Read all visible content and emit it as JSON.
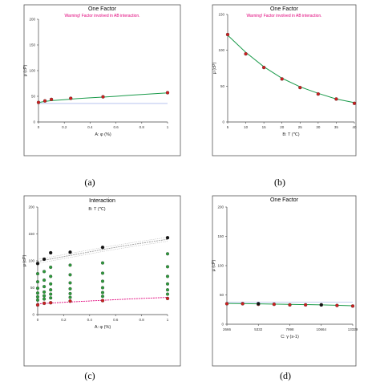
{
  "chart_data": [
    {
      "type": "line",
      "caption": "(a)",
      "title": "One Factor",
      "warning": "Warning! Factor involved in AB interaction.",
      "xlabel": "A: φ (%)",
      "ylabel": "μ (cP)",
      "xlim": [
        0,
        1
      ],
      "ylim": [
        0,
        200
      ],
      "xticks": [
        "0",
        "0.2",
        "0.4",
        "0.6",
        "0.8",
        "1"
      ],
      "yticks": [
        "0",
        "50",
        "100",
        "150",
        "200"
      ],
      "reference_line": 36,
      "series": [
        {
          "kind": "fit",
          "color": "#1a9a4a",
          "x": [
            0,
            0.05,
            0.1,
            0.2,
            0.3,
            0.4,
            0.5,
            0.6,
            0.7,
            0.8,
            0.9,
            1.0
          ],
          "y": [
            38,
            40,
            41.5,
            43.5,
            45.5,
            47,
            48.5,
            50,
            52,
            53.5,
            55,
            56.5
          ]
        },
        {
          "kind": "points",
          "color": "#cc1f1f",
          "x": [
            0,
            0.05,
            0.1,
            0.25,
            0.5,
            1.0
          ],
          "y": [
            38,
            41,
            44,
            46,
            49,
            57
          ]
        }
      ]
    },
    {
      "type": "line",
      "caption": "(b)",
      "title": "One Factor",
      "warning": "Warning! Factor involved in AB interaction.",
      "xlabel": "B: T (℃)",
      "ylabel": "μ (cP)",
      "xlim": [
        5,
        40
      ],
      "ylim": [
        0,
        150
      ],
      "xticks": [
        "5",
        "10",
        "15",
        "20",
        "25",
        "30",
        "35",
        "40"
      ],
      "yticks": [
        "0",
        "50",
        "100",
        "150"
      ],
      "series": [
        {
          "kind": "fit",
          "color": "#1a9a4a",
          "x": [
            5,
            10,
            15,
            20,
            25,
            30,
            35,
            40
          ],
          "y": [
            121,
            97,
            77,
            61,
            49,
            40,
            32,
            27
          ]
        },
        {
          "kind": "points",
          "color": "#cc1f1f",
          "x": [
            5,
            10,
            15,
            20,
            25,
            30,
            35,
            40
          ],
          "y": [
            122,
            95,
            76,
            60,
            48,
            39,
            32,
            26
          ]
        }
      ]
    },
    {
      "type": "scatter",
      "caption": "(c)",
      "title": "Interaction",
      "legend_title": "B: T (℃)",
      "xlabel": "A: φ (%)",
      "ylabel": "μ (cP)",
      "xlim": [
        0,
        1
      ],
      "ylim": [
        0,
        200
      ],
      "xticks": [
        "0",
        "0.2",
        "0.4",
        "0.6",
        "0.8",
        "1"
      ],
      "yticks": [
        "0",
        "50",
        "100",
        "150",
        "200"
      ],
      "series": [
        {
          "kind": "fit-high",
          "color": "#999999",
          "x": [
            0,
            0.25,
            0.5,
            0.75,
            1.0
          ],
          "y": [
            99,
            110,
            121,
            131,
            140
          ]
        },
        {
          "kind": "fit-low",
          "color": "#e0007a",
          "x": [
            0,
            0.25,
            0.5,
            0.75,
            1.0
          ],
          "y": [
            20,
            23.5,
            26.5,
            29.5,
            32
          ]
        },
        {
          "kind": "points-high",
          "color": "#111111",
          "x": [
            0,
            0.05,
            0.1,
            0.25,
            0.5,
            1.0
          ],
          "y": [
            95,
            103,
            115,
            116,
            125,
            143
          ]
        },
        {
          "kind": "points-low",
          "color": "#cc1f1f",
          "x": [
            0,
            0.05,
            0.1,
            0.25,
            0.5,
            1.0
          ],
          "y": [
            18,
            21,
            22,
            25,
            26,
            30
          ]
        },
        {
          "kind": "points-mid",
          "color": "#2c9a3a",
          "x": [
            0,
            0,
            0,
            0,
            0,
            0,
            0.05,
            0.05,
            0.05,
            0.05,
            0.05,
            0.05,
            0.1,
            0.1,
            0.1,
            0.1,
            0.1,
            0.1,
            0.25,
            0.25,
            0.25,
            0.25,
            0.25,
            0.25,
            0.5,
            0.5,
            0.5,
            0.5,
            0.5,
            0.5,
            1.0,
            1.0,
            1.0,
            1.0,
            1.0,
            1.0
          ],
          "y": [
            76,
            61,
            49,
            40,
            33,
            27,
            80,
            64,
            52,
            42,
            35,
            29,
            88,
            71,
            57,
            46,
            38,
            31,
            92,
            74,
            59,
            48,
            39,
            32,
            96,
            77,
            62,
            50,
            41,
            34,
            113,
            89,
            71,
            57,
            46,
            38
          ]
        }
      ]
    },
    {
      "type": "line",
      "caption": "(d)",
      "title": "One Factor",
      "xlabel": "C: γ (s-1)",
      "ylabel": "μ (cP)",
      "xlim": [
        2666,
        13329
      ],
      "ylim": [
        0,
        200
      ],
      "xticks": [
        "2666",
        "5332",
        "7998",
        "10664",
        "13329"
      ],
      "yticks": [
        "0",
        "50",
        "100",
        "150",
        "200"
      ],
      "reference_line": 38,
      "series": [
        {
          "kind": "fit",
          "color": "#1a9a4a",
          "x": [
            2666,
            5332,
            7998,
            10664,
            13329
          ],
          "y": [
            35.5,
            34.8,
            34,
            33,
            31.5
          ]
        },
        {
          "kind": "points",
          "color": "#cc1f1f",
          "x": [
            2666,
            4000,
            5332,
            6665,
            7998,
            9331,
            10664,
            11997,
            13329
          ],
          "y": [
            35,
            35,
            34,
            34,
            33,
            33,
            33,
            32,
            31
          ]
        },
        {
          "kind": "points-black",
          "color": "#111111",
          "x": [
            5332,
            10664
          ],
          "y": [
            35,
            33
          ]
        }
      ]
    }
  ]
}
